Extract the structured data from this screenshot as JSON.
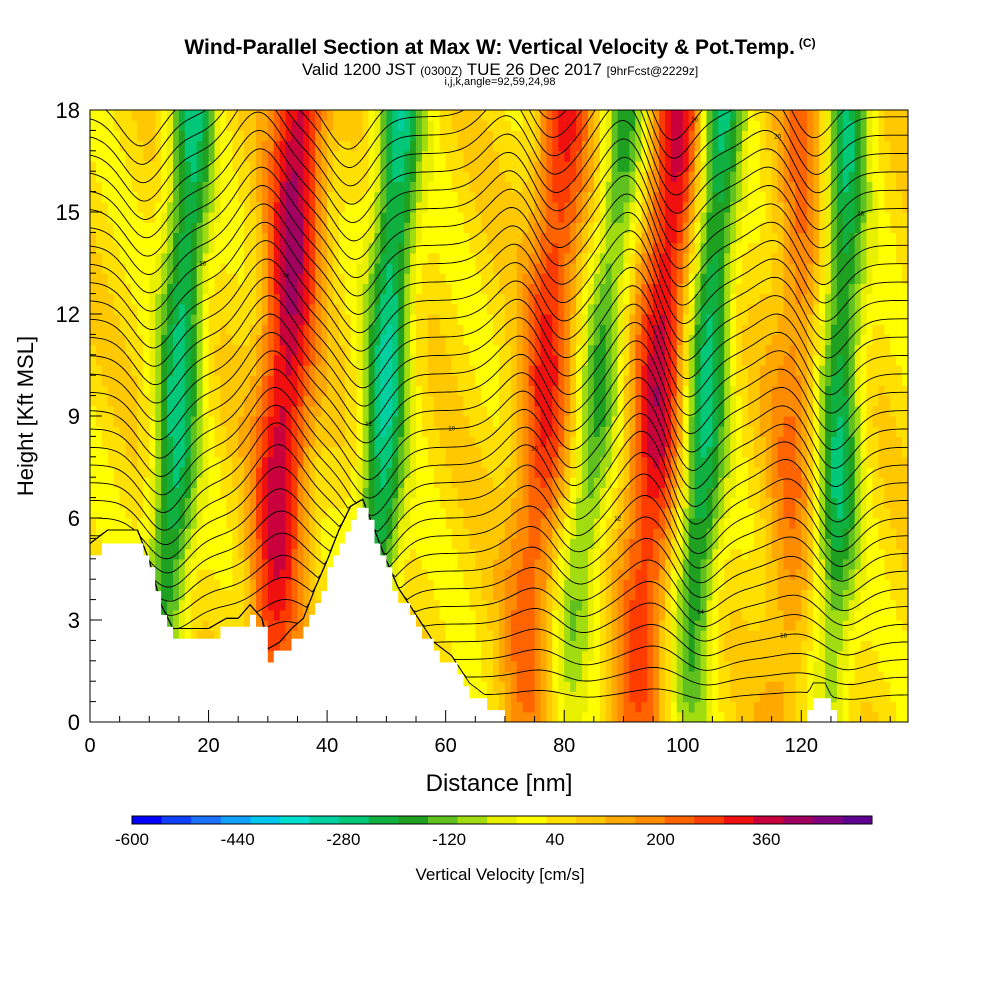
{
  "header": {
    "title": "Wind-Parallel Section at Max W: Vertical Velocity & Pot.Temp.",
    "title_mark": "(C)",
    "valid_a": "Valid 1200 JST",
    "valid_utc": "(0300Z)",
    "valid_b": "TUE 26 Dec 2017",
    "fcst": "[9hrFcst@2229z]",
    "ijk": "i,j,k,angle=92,59,24,98"
  },
  "chart_data": {
    "type": "heatmap",
    "xlabel": "Distance [nm]",
    "ylabel": "Height [Kft MSL]",
    "xlim": [
      0,
      138
    ],
    "ylim": [
      0,
      18
    ],
    "x_ticks": [
      "0",
      "20",
      "40",
      "60",
      "80",
      "100",
      "120"
    ],
    "y_ticks": [
      "0",
      "3",
      "6",
      "9",
      "12",
      "15",
      "18"
    ],
    "colorbar": {
      "label": "Vertical Velocity [cm/s]",
      "tick_labels": [
        "-600",
        "-440",
        "-280",
        "-120",
        "40",
        "200",
        "360"
      ],
      "tick_values": [
        -600,
        -440,
        -280,
        -120,
        40,
        200,
        360
      ],
      "range": [
        -600,
        520
      ],
      "colors": [
        "#0000ff",
        "#1040ff",
        "#1a70ff",
        "#10a0ff",
        "#00c8f0",
        "#00e0d0",
        "#00d0a0",
        "#00c878",
        "#10b040",
        "#20a020",
        "#60c020",
        "#a0dc10",
        "#e8f000",
        "#ffff00",
        "#ffe000",
        "#ffc800",
        "#ffa800",
        "#ff8c00",
        "#ff6400",
        "#ff3c00",
        "#f01010",
        "#c8003c",
        "#a00060",
        "#800080",
        "#600090"
      ]
    },
    "terrain_kft": [
      [
        0,
        5.1
      ],
      [
        3,
        5.5
      ],
      [
        8,
        5.5
      ],
      [
        10,
        4.6
      ],
      [
        12,
        3.3
      ],
      [
        14,
        2.6
      ],
      [
        17,
        2.6
      ],
      [
        20,
        2.6
      ],
      [
        23,
        2.9
      ],
      [
        25,
        2.9
      ],
      [
        27,
        3.3
      ],
      [
        29,
        2.9
      ],
      [
        30,
        2.0
      ],
      [
        32,
        2.2
      ],
      [
        34,
        2.6
      ],
      [
        36,
        2.9
      ],
      [
        38,
        3.8
      ],
      [
        40,
        4.6
      ],
      [
        42,
        5.5
      ],
      [
        44,
        6.2
      ],
      [
        46,
        6.4
      ],
      [
        48,
        5.5
      ],
      [
        50,
        4.6
      ],
      [
        52,
        3.8
      ],
      [
        55,
        3.0
      ],
      [
        58,
        2.2
      ],
      [
        61,
        1.8
      ],
      [
        64,
        1.0
      ],
      [
        67,
        0.6
      ],
      [
        70,
        0.3
      ],
      [
        75,
        0.3
      ],
      [
        80,
        0.3
      ],
      [
        100,
        0.3
      ],
      [
        120,
        0.3
      ],
      [
        122,
        1.0
      ],
      [
        124,
        1.0
      ],
      [
        126,
        0.3
      ],
      [
        138,
        0.3
      ]
    ],
    "updraft_columns": [
      {
        "base_x_nm": 30,
        "lean_nm_per_kft": 0.3,
        "peak_cms": 330
      },
      {
        "base_x_nm": 73,
        "lean_nm_per_kft": 0.4,
        "peak_cms": 240
      },
      {
        "base_x_nm": 92,
        "lean_nm_per_kft": 0.4,
        "peak_cms": 300
      },
      {
        "base_x_nm": 117,
        "lean_nm_per_kft": 0.2,
        "peak_cms": 150
      }
    ],
    "downdraft_columns": [
      {
        "base_x_nm": 12,
        "lean_nm_per_kft": 0.3,
        "peak_cms": -300
      },
      {
        "base_x_nm": 47,
        "lean_nm_per_kft": 0.3,
        "peak_cms": -320
      },
      {
        "base_x_nm": 80,
        "lean_nm_per_kft": 0.6,
        "peak_cms": -200
      },
      {
        "base_x_nm": 101,
        "lean_nm_per_kft": 0.3,
        "peak_cms": -300
      },
      {
        "base_x_nm": 125,
        "lean_nm_per_kft": 0.15,
        "peak_cms": -280
      }
    ],
    "isentrope_labels": [
      "18",
      "16",
      "14",
      "12",
      "10",
      "10",
      "12",
      "14",
      "16",
      "18",
      "20",
      "16",
      "14",
      "12",
      "10",
      "10",
      "12",
      "14",
      "16",
      "18",
      "20"
    ]
  }
}
